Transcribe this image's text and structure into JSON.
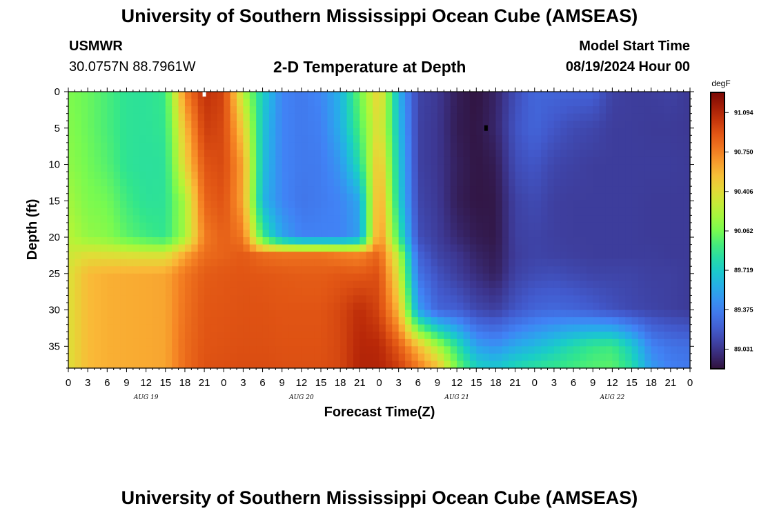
{
  "header": {
    "title": "University of Southern Mississippi Ocean Cube (AMSEAS)",
    "station_name": "USMWR",
    "station_coords": "30.0757N  88.7961W",
    "plot_title": "2-D Temperature at Depth",
    "model_start_label": "Model Start Time",
    "model_start_value": "08/19/2024 Hour 00"
  },
  "footer": {
    "title": "University of Southern Mississippi Ocean Cube (AMSEAS)"
  },
  "chart_data": {
    "type": "heatmap",
    "title": "2-D Temperature at Depth",
    "xlabel": "Forecast Time(Z)",
    "ylabel": "Depth (ft)",
    "x_unit": "hours since model start",
    "xlim": [
      0,
      96
    ],
    "ylim": [
      38,
      0
    ],
    "y_inverted": true,
    "x_tick_step_hours": 3,
    "x_tick_labels": [
      "0",
      "3",
      "6",
      "9",
      "12",
      "15",
      "18",
      "21",
      "0",
      "3",
      "6",
      "9",
      "12",
      "15",
      "18",
      "21",
      "0",
      "3",
      "6",
      "9",
      "12",
      "15",
      "18",
      "21",
      "0",
      "3",
      "6",
      "9",
      "12",
      "15",
      "18",
      "21",
      "0"
    ],
    "day_labels": [
      {
        "hour": 12,
        "label": "AUG 19"
      },
      {
        "hour": 36,
        "label": "AUG 20"
      },
      {
        "hour": 60,
        "label": "AUG 21"
      },
      {
        "hour": 84,
        "label": "AUG 22"
      }
    ],
    "y_ticks": [
      0,
      5,
      10,
      15,
      20,
      25,
      30,
      35
    ],
    "colorbar": {
      "unit": "degF",
      "min": 88.86,
      "max": 91.27,
      "ticks": [
        89.031,
        89.375,
        89.719,
        90.062,
        90.406,
        90.75,
        91.094
      ],
      "tick_labels": [
        "89.031",
        "89.375",
        "89.719",
        "90.062",
        "90.406",
        "90.750",
        "91.094"
      ]
    },
    "markers": [
      {
        "hour": 21,
        "depth": 0.3,
        "color": "#ffffff"
      },
      {
        "hour": 64.5,
        "depth": 5,
        "color": "#000000"
      }
    ],
    "depths": [
      0,
      5,
      10,
      15,
      20,
      22.5,
      25,
      30,
      35,
      38
    ],
    "hours": [
      0,
      3,
      6,
      9,
      12,
      15,
      18,
      21,
      24,
      27,
      30,
      33,
      36,
      39,
      42,
      45,
      48,
      51,
      54,
      57,
      60,
      63,
      66,
      69,
      72,
      75,
      78,
      81,
      84,
      87,
      90,
      93,
      96
    ],
    "values": [
      [
        90.08,
        90.03,
        89.95,
        89.87,
        89.86,
        89.91,
        90.74,
        91.05,
        90.98,
        90.24,
        89.74,
        89.4,
        89.35,
        89.41,
        89.6,
        90.04,
        90.49,
        89.61,
        89.1,
        89.05,
        88.92,
        88.87,
        88.95,
        89.14,
        89.26,
        89.25,
        89.24,
        89.23,
        89.09,
        89.07,
        89.07,
        89.09,
        89.05
      ],
      [
        90.1,
        90.03,
        89.95,
        89.87,
        89.86,
        89.89,
        90.55,
        91.0,
        90.95,
        90.48,
        89.69,
        89.4,
        89.35,
        89.38,
        89.58,
        89.96,
        90.44,
        89.66,
        89.09,
        89.04,
        88.91,
        88.88,
        88.96,
        89.17,
        89.25,
        89.18,
        89.13,
        89.11,
        89.07,
        89.07,
        89.06,
        89.06,
        89.05
      ],
      [
        90.13,
        90.05,
        89.98,
        89.87,
        89.85,
        89.86,
        90.44,
        90.91,
        90.95,
        90.63,
        89.67,
        89.4,
        89.35,
        89.36,
        89.48,
        89.82,
        90.58,
        89.72,
        89.09,
        89.04,
        88.93,
        88.88,
        88.91,
        89.14,
        89.18,
        89.11,
        89.09,
        89.07,
        89.07,
        89.07,
        89.07,
        89.07,
        89.06
      ],
      [
        90.19,
        90.08,
        90.05,
        89.93,
        89.86,
        89.87,
        90.2,
        90.85,
        90.92,
        90.62,
        89.62,
        89.41,
        89.33,
        89.36,
        89.4,
        89.55,
        90.69,
        89.76,
        89.11,
        89.05,
        88.92,
        88.88,
        88.89,
        89.09,
        89.13,
        89.08,
        89.07,
        89.07,
        89.07,
        89.07,
        89.06,
        89.06,
        89.06
      ],
      [
        90.25,
        90.14,
        90.11,
        90.0,
        89.93,
        89.89,
        90.19,
        90.76,
        90.87,
        90.78,
        89.91,
        89.54,
        89.39,
        89.39,
        89.39,
        89.51,
        90.75,
        89.92,
        89.15,
        89.07,
        88.97,
        88.91,
        88.89,
        89.08,
        89.1,
        89.08,
        89.07,
        89.07,
        89.07,
        89.07,
        89.06,
        89.06,
        89.06
      ],
      [
        90.32,
        90.4,
        90.39,
        90.38,
        90.37,
        90.37,
        90.63,
        90.82,
        90.86,
        90.89,
        90.82,
        90.8,
        90.8,
        90.8,
        90.76,
        90.73,
        90.86,
        90.26,
        89.25,
        89.1,
        89.04,
        88.95,
        88.91,
        89.07,
        89.1,
        89.09,
        89.08,
        89.07,
        89.07,
        89.07,
        89.07,
        89.06,
        89.06
      ],
      [
        90.37,
        90.56,
        90.6,
        90.61,
        90.62,
        90.63,
        90.78,
        90.88,
        90.9,
        90.91,
        90.9,
        90.89,
        90.88,
        90.88,
        90.9,
        90.89,
        90.93,
        90.36,
        89.32,
        89.16,
        89.07,
        88.99,
        88.93,
        89.09,
        89.13,
        89.14,
        89.12,
        89.1,
        89.1,
        89.1,
        89.08,
        89.08,
        89.06
      ],
      [
        90.38,
        90.56,
        90.6,
        90.61,
        90.62,
        90.63,
        90.8,
        90.9,
        90.91,
        90.92,
        90.92,
        90.91,
        90.91,
        90.91,
        90.96,
        91.06,
        90.97,
        90.56,
        89.52,
        89.25,
        89.22,
        89.12,
        89.08,
        89.18,
        89.25,
        89.27,
        89.25,
        89.21,
        89.16,
        89.12,
        89.1,
        89.08,
        89.06
      ],
      [
        90.38,
        90.56,
        90.6,
        90.61,
        90.62,
        90.63,
        90.82,
        90.91,
        90.92,
        90.93,
        90.93,
        90.92,
        90.92,
        90.92,
        90.96,
        91.09,
        91.08,
        90.89,
        90.56,
        90.2,
        89.86,
        89.52,
        89.46,
        89.56,
        89.63,
        89.72,
        89.82,
        89.9,
        89.92,
        89.72,
        89.4,
        89.32,
        89.3
      ],
      [
        90.38,
        90.56,
        90.6,
        90.61,
        90.62,
        90.63,
        90.82,
        90.92,
        90.93,
        90.94,
        90.94,
        90.93,
        90.93,
        90.93,
        90.96,
        91.1,
        91.1,
        91.0,
        90.78,
        90.56,
        90.06,
        89.76,
        89.7,
        89.8,
        89.86,
        89.9,
        89.94,
        89.98,
        90.0,
        89.84,
        89.5,
        89.38,
        89.35
      ]
    ]
  }
}
